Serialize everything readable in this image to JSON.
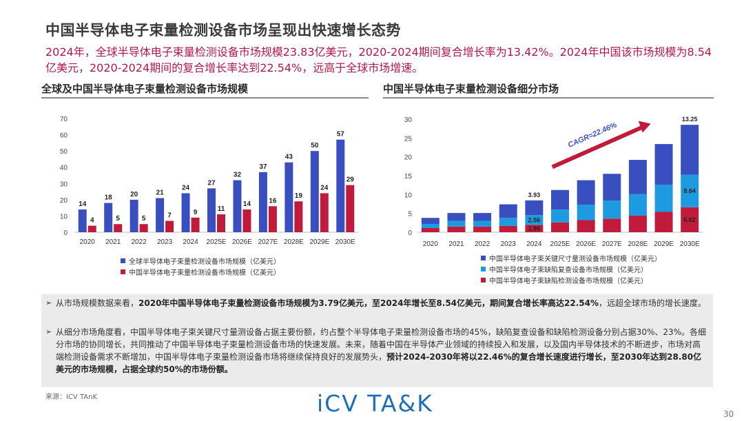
{
  "header": {
    "title": "中国半导体电子束量检测设备市场呈现出快速增长态势",
    "subtitle": "2024年，全球半导体电子束量检测设备市场规模23.83亿美元，2020-2024期间复合增长率为13.42%。2024年中国该市场规模为8.54亿美元，2020-2024期间的复合增长率达到22.54%，远高于全球市场增速。"
  },
  "left_section": {
    "heading": "全球及中国半导体电子束量检测设备市场规模"
  },
  "right_section": {
    "heading": "中国半导体电子束量检测设备细分市场"
  },
  "chart_data": [
    {
      "type": "bar",
      "categories": [
        "2020",
        "2021",
        "2022",
        "2023",
        "2024",
        "2025E",
        "2026E",
        "2027E",
        "2028E",
        "2029E",
        "2030E"
      ],
      "series": [
        {
          "name": "全球半导体电子束量检测设备市场规模（亿美元）",
          "values": [
            14,
            18,
            20,
            21,
            24,
            27,
            32,
            37,
            43,
            50,
            57
          ],
          "color": "#3a4fbf"
        },
        {
          "name": "中国半导体电子束量检测设备市场规模（亿美元）",
          "values": [
            4,
            5,
            5,
            7,
            9,
            11,
            14,
            16,
            19,
            24,
            29
          ],
          "color": "#c01b3a"
        }
      ],
      "ylim": [
        0,
        70
      ],
      "yticks": [
        0,
        10,
        20,
        30,
        40,
        50,
        60,
        70
      ],
      "grid": false,
      "legend": "bottom"
    },
    {
      "type": "bar",
      "stacked": true,
      "categories": [
        "2020",
        "2021",
        "2022",
        "2023",
        "2024",
        "2025E",
        "2026E",
        "2027E",
        "2028E",
        "2029E",
        "2030E"
      ],
      "series": [
        {
          "name": "中国半导体电子束缺陷检测设备市场规模（亿美元）",
          "values": [
            1.1,
            1.5,
            1.5,
            1.7,
            1.96,
            2.6,
            3.2,
            3.6,
            4.4,
            5.4,
            6.62
          ],
          "color": "#c01b3a"
        },
        {
          "name": "中国半导体电子束缺陷复查设备市场规模（亿美元）",
          "values": [
            1.1,
            1.5,
            1.5,
            2.1,
            2.56,
            3.4,
            4.1,
            4.8,
            5.7,
            7.2,
            8.64
          ],
          "color": "#1e9be0"
        },
        {
          "name": "中国半导体电子束关键尺寸量测设备市场规模（亿美元）",
          "values": [
            1.6,
            2.1,
            2.1,
            3.6,
            3.93,
            5.2,
            6.5,
            7.1,
            9.1,
            10.8,
            13.25
          ],
          "color": "#3a4fbf"
        }
      ],
      "data_labels": [
        {
          "category": "2024",
          "series": 2,
          "text": "3.93"
        },
        {
          "category": "2024",
          "series": 1,
          "text": "2.56"
        },
        {
          "category": "2024",
          "series": 0,
          "text": "1.96"
        },
        {
          "category": "2030E",
          "series": 2,
          "text": "13.25"
        },
        {
          "category": "2030E",
          "series": 1,
          "text": "8.64"
        },
        {
          "category": "2030E",
          "series": 0,
          "text": "6.62"
        }
      ],
      "annotation": "CAGR=22.46%",
      "ylim": [
        0,
        30
      ],
      "yticks": [
        0,
        5,
        10,
        15,
        20,
        25,
        30
      ],
      "grid": false,
      "legend": "bottom"
    }
  ],
  "legend_right_order": [
    {
      "text": "中国半导体电子束关键尺寸量测设备市场规模（亿美元）",
      "color": "#3a4fbf"
    },
    {
      "text": "中国半导体电子束缺陷复查设备市场规模（亿美元）",
      "color": "#1e9be0"
    },
    {
      "text": "中国半导体电子束缺陷检测设备市场规模（亿美元）",
      "color": "#c01b3a"
    }
  ],
  "bullets": [
    {
      "arrow": "➢",
      "parts": [
        {
          "t": "从市场规模数据来看，",
          "b": false
        },
        {
          "t": "2020年中国半导体电子束量检测设备市场规模为3.79亿美元，至2024年增长至8.54亿美元，期间复合增长率高达22.54%",
          "b": true
        },
        {
          "t": "，远超全球市场的增长速度。",
          "b": false
        }
      ]
    },
    {
      "arrow": "➢",
      "parts": [
        {
          "t": "从细分市场角度看，中国半导体电子束关键尺寸量测设备占据主要份额，约占整个半导体电子束量检测设备市场的45%，缺陷复查设备和缺陷检测设备分别占据30%、23%。各细分市场的协同增长，共同推动了中国半导体电子束量检测设备市场的快速发展。未来，随着中国在半导体产业领域的持续投入和发展，以及国内半导体技术的不断进步，市场对高端检测设备需求不断增加，中国半导体电子束量检测设备市场将继续保持良好的发展势头，",
          "b": false
        },
        {
          "t": "预计2024-2030年将以22.46%的复合增长速度进行增长，至2030年达到28.80亿美元的市场规模，占据全球约50%的市场份额。",
          "b": true
        }
      ]
    }
  ],
  "source": "来源：ICV TAnK",
  "logo": "iCV TA&K",
  "page_number": "30"
}
